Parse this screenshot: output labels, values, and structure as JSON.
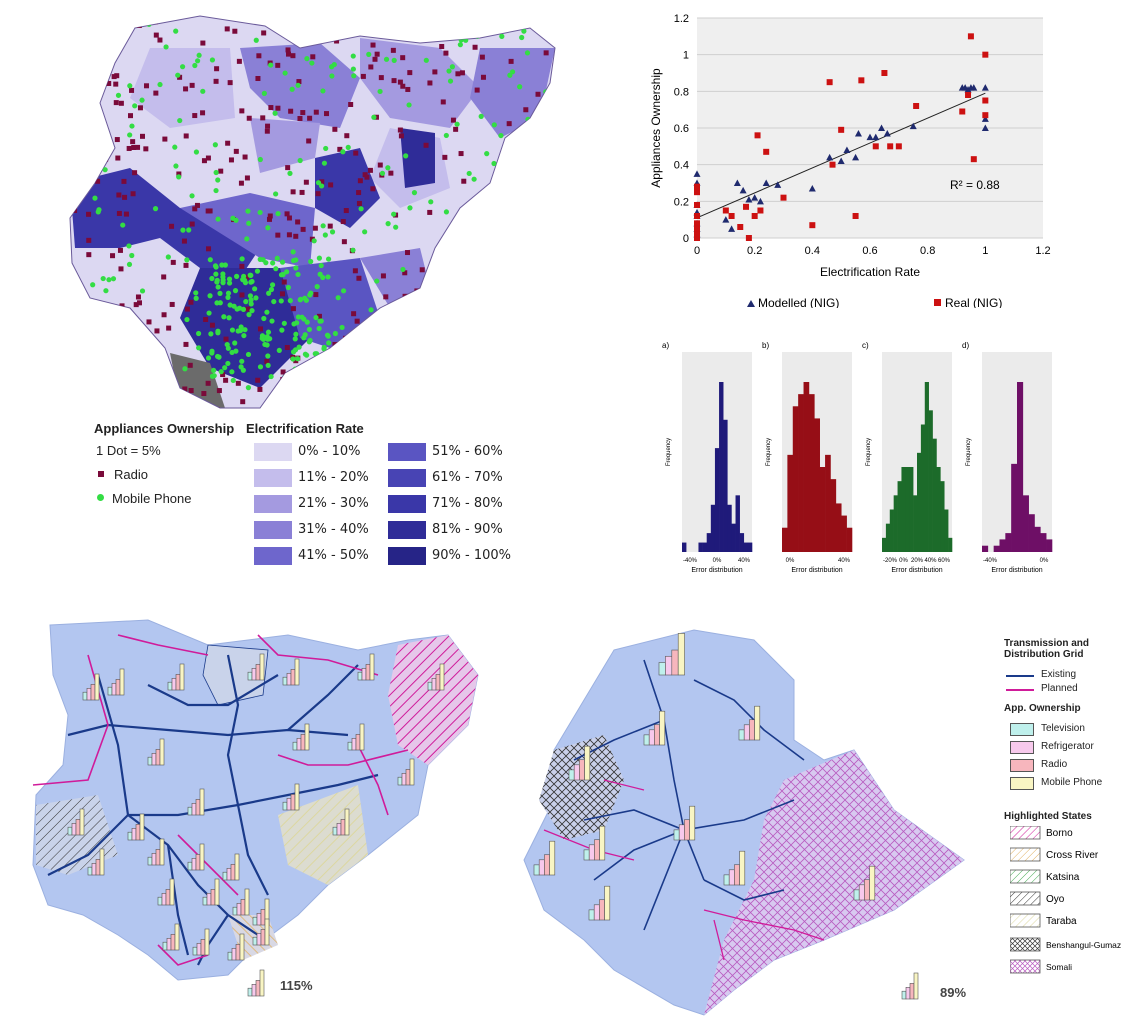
{
  "top_left_map": {
    "legend": {
      "ownership_title": "Appliances Ownership",
      "dot_scale": "1 Dot = 5%",
      "radio_label": "Radio",
      "mobile_label": "Mobile Phone",
      "radio_color": "#7a0a3a",
      "mobile_color": "#33dd44",
      "er_title": "Electrification Rate",
      "er_bins": [
        {
          "label": "0% - 10%",
          "color": "#dcd8f2"
        },
        {
          "label": "11% - 20%",
          "color": "#c4bdec"
        },
        {
          "label": "21% - 30%",
          "color": "#a49ae0"
        },
        {
          "label": "31% - 40%",
          "color": "#8a80d6"
        },
        {
          "label": "41% - 50%",
          "color": "#6e66cc"
        },
        {
          "label": "51% - 60%",
          "color": "#5a55c2"
        },
        {
          "label": "61% - 70%",
          "color": "#4844b4"
        },
        {
          "label": "71% - 80%",
          "color": "#3a37a8"
        },
        {
          "label": "81% - 90%",
          "color": "#2f2c98"
        },
        {
          "label": "90% - 100%",
          "color": "#262487"
        }
      ]
    }
  },
  "chart_data": [
    {
      "type": "scatter",
      "xlabel": "Electrification Rate",
      "ylabel": "Appliances Ownership",
      "xlim": [
        0,
        1.2
      ],
      "ylim": [
        0,
        1.2
      ],
      "xticks": [
        "0",
        "0.2",
        "0.4",
        "0.6",
        "0.8",
        "1",
        "1.2"
      ],
      "yticks": [
        "0",
        "0.2",
        "0.4",
        "0.6",
        "0.8",
        "1",
        "1.2"
      ],
      "annotation": "R² = 0.88",
      "grid": true,
      "legend_position": "bottom",
      "trendline": {
        "x": [
          0,
          1
        ],
        "y": [
          0.11,
          0.79
        ]
      },
      "series": [
        {
          "name": "Modelled (NIG)",
          "marker": "triangle",
          "color": "#1f2a6e",
          "x": [
            0,
            0,
            0,
            0,
            0,
            0,
            0,
            0,
            0.1,
            0.12,
            0.14,
            0.16,
            0.18,
            0.2,
            0.22,
            0.24,
            0.28,
            0.4,
            0.46,
            0.5,
            0.52,
            0.55,
            0.56,
            0.6,
            0.62,
            0.64,
            0.66,
            0.75,
            0.92,
            0.93,
            0.94,
            0.95,
            0.96,
            1,
            1,
            1
          ],
          "y": [
            0.35,
            0.3,
            0.18,
            0.12,
            0.08,
            0.05,
            0.02,
            0.14,
            0.1,
            0.05,
            0.3,
            0.26,
            0.21,
            0.22,
            0.2,
            0.3,
            0.29,
            0.27,
            0.44,
            0.42,
            0.48,
            0.44,
            0.57,
            0.55,
            0.55,
            0.6,
            0.57,
            0.61,
            0.82,
            0.82,
            0.81,
            0.82,
            0.82,
            0.82,
            0.65,
            0.6
          ]
        },
        {
          "name": "Real (NIG)",
          "marker": "square",
          "color": "#cc1111",
          "x": [
            0,
            0,
            0,
            0,
            0,
            0,
            0,
            0,
            0.1,
            0.12,
            0.15,
            0.17,
            0.18,
            0.2,
            0.21,
            0.22,
            0.24,
            0.3,
            0.4,
            0.46,
            0.47,
            0.5,
            0.55,
            0.57,
            0.62,
            0.65,
            0.67,
            0.7,
            0.76,
            0.92,
            0.94,
            0.95,
            0.96,
            1,
            1,
            1
          ],
          "y": [
            0.28,
            0.25,
            0.18,
            0.12,
            0.08,
            0.05,
            0.02,
            0,
            0.15,
            0.12,
            0.06,
            0.17,
            0,
            0.12,
            0.56,
            0.15,
            0.47,
            0.22,
            0.07,
            0.85,
            0.4,
            0.59,
            0.12,
            0.86,
            0.5,
            0.9,
            0.5,
            0.5,
            0.72,
            0.69,
            0.78,
            1.1,
            0.43,
            1,
            0.75,
            0.67
          ]
        }
      ]
    },
    {
      "type": "bar",
      "title": "a)",
      "xlabel": "Error distribution",
      "ylabel": "Frequency",
      "xticks": [
        "-40%",
        "0%",
        "40%"
      ],
      "color": "#1f1a7a",
      "values": [
        1,
        0,
        0,
        0,
        1,
        1,
        2,
        5,
        11,
        18,
        14,
        5,
        3,
        6,
        2,
        1,
        1
      ]
    },
    {
      "type": "bar",
      "title": "b)",
      "xlabel": "Error distribution",
      "ylabel": "Frequency",
      "xticks": [
        "0%",
        "40%"
      ],
      "color": "#960e16",
      "values": [
        2,
        8,
        12,
        13,
        14,
        13,
        11,
        7,
        8,
        6,
        4,
        3,
        2
      ]
    },
    {
      "type": "bar",
      "title": "c)",
      "xlabel": "Error distribution",
      "ylabel": "Frequency",
      "xticks": [
        "-20%",
        "0%",
        "20%",
        "40%",
        "60%"
      ],
      "color": "#1c6b2a",
      "values": [
        1,
        2,
        3,
        4,
        5,
        6,
        6,
        6,
        4,
        7,
        9,
        12,
        10,
        8,
        6,
        5,
        3,
        1
      ]
    },
    {
      "type": "bar",
      "title": "d)",
      "xlabel": "Error distribution",
      "ylabel": "Frequency",
      "xticks": [
        "-40%",
        "0%"
      ],
      "color": "#6e0f66",
      "values": [
        1,
        0,
        1,
        2,
        3,
        14,
        27,
        9,
        6,
        4,
        3,
        2
      ]
    }
  ],
  "bottom_maps": {
    "legend": {
      "grid_title": "Transmission and Distribution Grid",
      "existing_label": "Existing",
      "planned_label": "Planned",
      "existing_color": "#1a3a8a",
      "planned_color": "#d01b9a",
      "ownership_title": "App. Ownership",
      "appliances": [
        {
          "label": "Television",
          "color": "#bff0ec"
        },
        {
          "label": "Refrigerator",
          "color": "#f7c9ec"
        },
        {
          "label": "Radio",
          "color": "#f7b6bd"
        },
        {
          "label": "Mobile Phone",
          "color": "#f9f5c3"
        }
      ],
      "highlighted_title": "Highlighted States",
      "states": [
        {
          "label": "Borno",
          "color": "#d01b9a",
          "pattern": "hatch"
        },
        {
          "label": "Cross River",
          "color": "#e0b060",
          "pattern": "hatch"
        },
        {
          "label": "Katsina",
          "color": "#4cae5a",
          "pattern": "hatch"
        },
        {
          "label": "Oyo",
          "color": "#333333",
          "pattern": "hatch"
        },
        {
          "label": "Taraba",
          "color": "#dcd7a0",
          "pattern": "hatch"
        },
        {
          "label": "Benshangul-Gumaz",
          "color": "#333333",
          "pattern": "crosshatch"
        },
        {
          "label": "Somali",
          "color": "#b85cc0",
          "pattern": "crosshatch"
        }
      ]
    },
    "nigeria_scale": "115%",
    "ethiopia_scale": "89%",
    "map_fill": "#b3c6f0"
  }
}
